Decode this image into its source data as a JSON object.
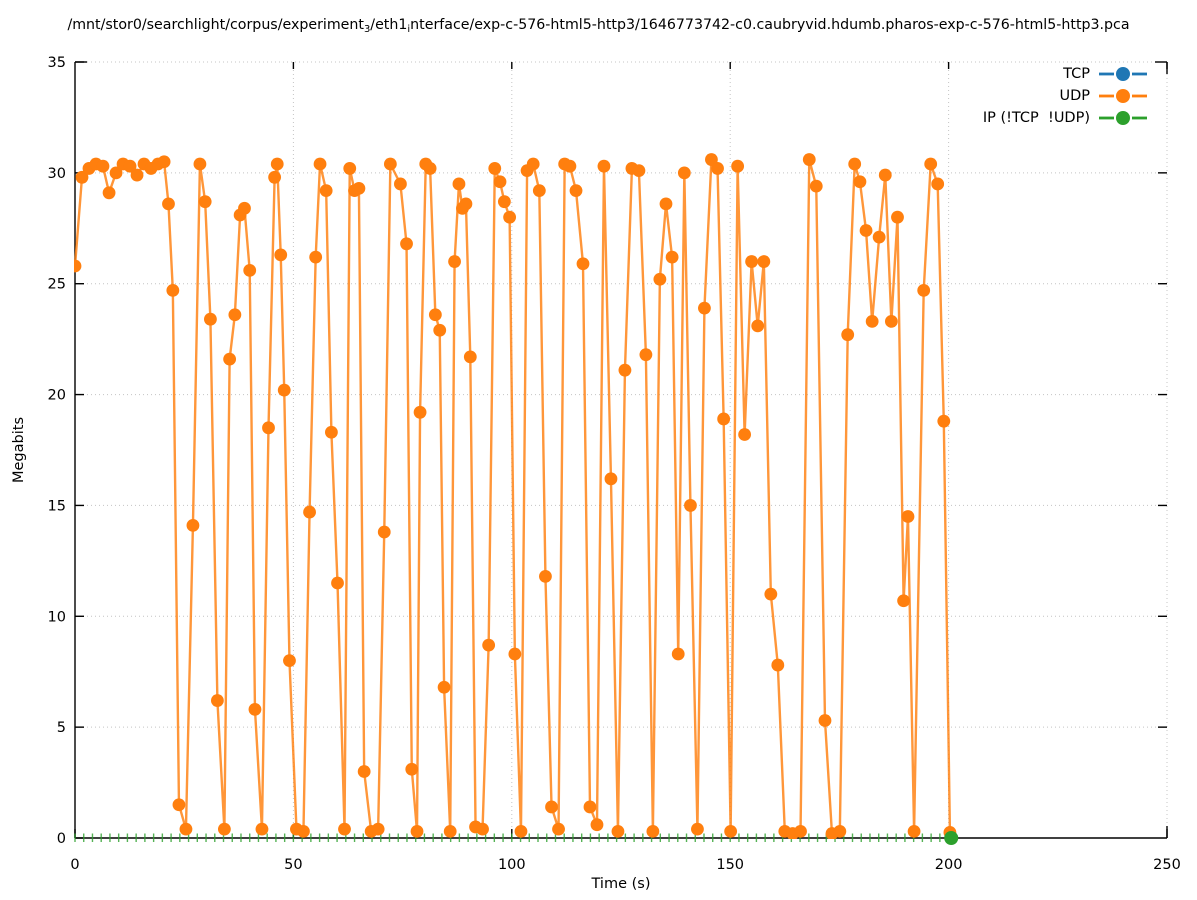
{
  "title": {
    "part1": "/mnt/stor0/searchlight/corpus/experiment",
    "sub1": "3",
    "part2": "/eth1",
    "sub2": "i",
    "part3": "nterface/exp-c-576-html5-http3/1646773742-c0.caubryvid.hdumb.pharos-exp-c-576-html5-http3.pca"
  },
  "axes": {
    "ylabel": "Megabits",
    "xlabel": "Time (s)"
  },
  "chart_data": {
    "type": "line",
    "title": "/mnt/stor0/searchlight/corpus/experiment₃/eth1ᵢnterface/exp-c-576-html5-http3/1646773742-c0.caubryvid.hdumb.pharos-exp-c-576-html5-http3.pca",
    "xlabel": "Time (s)",
    "ylabel": "Megabits",
    "xlim": [
      0,
      250
    ],
    "ylim": [
      0,
      35
    ],
    "xticks": [
      0,
      50,
      100,
      150,
      200,
      250
    ],
    "yticks": [
      0,
      5,
      10,
      15,
      20,
      25,
      30,
      35
    ],
    "grid": true,
    "legend_position": "top-right-inside",
    "colors": {
      "grid": "#c4c4c4",
      "border": "#000000"
    },
    "series": [
      {
        "name": "TCP",
        "color": "#1f77b4",
        "marker": "circle",
        "points": [],
        "note": "legend entry only; no data points visible in plot"
      },
      {
        "name": "UDP",
        "color": "#ff7f0e",
        "marker": "circle",
        "points": [
          [
            0,
            25.8
          ],
          [
            1.6,
            29.8
          ],
          [
            3.2,
            30.2
          ],
          [
            4.8,
            30.4
          ],
          [
            6.4,
            30.3
          ],
          [
            7.8,
            29.1
          ],
          [
            9.4,
            30.0
          ],
          [
            11,
            30.4
          ],
          [
            12.6,
            30.3
          ],
          [
            14.2,
            29.9
          ],
          [
            15.8,
            30.4
          ],
          [
            17.4,
            30.2
          ],
          [
            19,
            30.4
          ],
          [
            20.4,
            30.5
          ],
          [
            21.4,
            28.6
          ],
          [
            22.4,
            24.7
          ],
          [
            23.8,
            1.5
          ],
          [
            25.4,
            0.4
          ],
          [
            27,
            14.1
          ],
          [
            28.6,
            30.4
          ],
          [
            29.8,
            28.7
          ],
          [
            31,
            23.4
          ],
          [
            32.6,
            6.2
          ],
          [
            34.2,
            0.4
          ],
          [
            35.4,
            21.6
          ],
          [
            36.6,
            23.6
          ],
          [
            37.8,
            28.1
          ],
          [
            38.8,
            28.4
          ],
          [
            40,
            25.6
          ],
          [
            41.2,
            5.8
          ],
          [
            42.8,
            0.4
          ],
          [
            44.3,
            18.5
          ],
          [
            45.7,
            29.8
          ],
          [
            46.3,
            30.4
          ],
          [
            47.1,
            26.3
          ],
          [
            47.9,
            20.2
          ],
          [
            49.1,
            8.0
          ],
          [
            50.7,
            0.4
          ],
          [
            52.3,
            0.3
          ],
          [
            53.7,
            14.7
          ],
          [
            55.1,
            26.2
          ],
          [
            56.1,
            30.4
          ],
          [
            57.5,
            29.2
          ],
          [
            58.7,
            18.3
          ],
          [
            60.1,
            11.5
          ],
          [
            61.7,
            0.4
          ],
          [
            62.9,
            30.2
          ],
          [
            64,
            29.2
          ],
          [
            65,
            29.3
          ],
          [
            66.2,
            3.0
          ],
          [
            67.8,
            0.3
          ],
          [
            69.4,
            0.4
          ],
          [
            70.8,
            13.8
          ],
          [
            72.2,
            30.4
          ],
          [
            74.5,
            29.5
          ],
          [
            75.9,
            26.8
          ],
          [
            77.1,
            3.1
          ],
          [
            78.3,
            0.3
          ],
          [
            79,
            19.2
          ],
          [
            80.3,
            30.4
          ],
          [
            81.3,
            30.2
          ],
          [
            82.5,
            23.6
          ],
          [
            83.5,
            22.9
          ],
          [
            84.5,
            6.8
          ],
          [
            85.9,
            0.3
          ],
          [
            86.9,
            26.0
          ],
          [
            87.9,
            29.5
          ],
          [
            88.7,
            28.4
          ],
          [
            89.5,
            28.6
          ],
          [
            90.5,
            21.7
          ],
          [
            91.7,
            0.5
          ],
          [
            93.3,
            0.4
          ],
          [
            94.7,
            8.7
          ],
          [
            96.1,
            30.2
          ],
          [
            97.3,
            29.6
          ],
          [
            98.3,
            28.7
          ],
          [
            99.5,
            28.0
          ],
          [
            100.7,
            8.3
          ],
          [
            102.1,
            0.3
          ],
          [
            103.5,
            30.1
          ],
          [
            104.9,
            30.4
          ],
          [
            106.3,
            29.2
          ],
          [
            107.7,
            11.8
          ],
          [
            109.1,
            1.4
          ],
          [
            110.7,
            0.4
          ],
          [
            112.1,
            30.4
          ],
          [
            113.3,
            30.3
          ],
          [
            114.7,
            29.2
          ],
          [
            116.3,
            25.9
          ],
          [
            117.9,
            1.4
          ],
          [
            119.5,
            0.6
          ],
          [
            121.1,
            30.3
          ],
          [
            122.7,
            16.2
          ],
          [
            124.3,
            0.3
          ],
          [
            125.9,
            21.1
          ],
          [
            127.5,
            30.2
          ],
          [
            129.1,
            30.1
          ],
          [
            130.7,
            21.8
          ],
          [
            132.3,
            0.3
          ],
          [
            133.9,
            25.2
          ],
          [
            135.3,
            28.6
          ],
          [
            136.7,
            26.2
          ],
          [
            138.1,
            8.3
          ],
          [
            139.5,
            30.0
          ],
          [
            140.9,
            15.0
          ],
          [
            142.5,
            0.4
          ],
          [
            144.1,
            23.9
          ],
          [
            145.7,
            30.6
          ],
          [
            147.1,
            30.2
          ],
          [
            148.5,
            18.9
          ],
          [
            150.1,
            0.3
          ],
          [
            151.7,
            30.3
          ],
          [
            153.3,
            18.2
          ],
          [
            154.9,
            26.0
          ],
          [
            156.3,
            23.1
          ],
          [
            157.7,
            26.0
          ],
          [
            159.3,
            11.0
          ],
          [
            160.9,
            7.8
          ],
          [
            162.5,
            0.3
          ],
          [
            164.3,
            0.2
          ],
          [
            166.1,
            0.3
          ],
          [
            168.1,
            30.6
          ],
          [
            169.7,
            29.4
          ],
          [
            171.7,
            5.3
          ],
          [
            173.3,
            0.2
          ],
          [
            175.1,
            0.3
          ],
          [
            176.9,
            22.7
          ],
          [
            178.5,
            30.4
          ],
          [
            179.7,
            29.6
          ],
          [
            181.1,
            27.4
          ],
          [
            182.5,
            23.3
          ],
          [
            184.1,
            27.1
          ],
          [
            185.5,
            29.9
          ],
          [
            186.9,
            23.3
          ],
          [
            188.3,
            28.0
          ],
          [
            189.7,
            10.7
          ],
          [
            190.7,
            14.5
          ],
          [
            192.1,
            0.3
          ],
          [
            194.3,
            24.7
          ],
          [
            195.9,
            30.4
          ],
          [
            197.5,
            29.5
          ],
          [
            198.9,
            18.8
          ],
          [
            200.3,
            0.25
          ]
        ]
      },
      {
        "name": "IP (!TCP  !UDP)",
        "color": "#2ca02c",
        "marker": "circle",
        "baseline_marks": {
          "t_start": 0,
          "t_end": 200,
          "step": 2,
          "value": 0
        },
        "points": [
          [
            200.6,
            0
          ]
        ]
      }
    ]
  }
}
